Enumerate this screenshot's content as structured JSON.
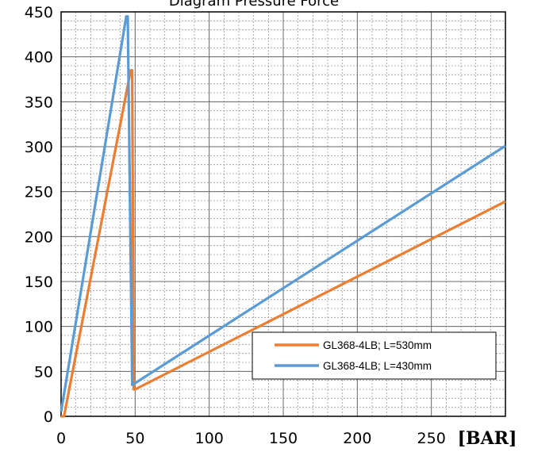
{
  "chart_data": {
    "type": "line",
    "title": "Diagram Pressure Force",
    "xlabel": "[BAR]",
    "ylabel": "",
    "xlim": [
      0,
      300
    ],
    "ylim": [
      0,
      450
    ],
    "x_ticks": [
      0,
      50,
      100,
      150,
      200,
      250
    ],
    "y_ticks": [
      0,
      50,
      100,
      150,
      200,
      250,
      300,
      350,
      400,
      450
    ],
    "grid": true,
    "legend_position": "lower-right",
    "series": [
      {
        "name": "GL368-4LB; L=530mm",
        "color": "#ED7D31",
        "x": [
          0,
          2,
          47,
          48,
          49,
          50,
          300
        ],
        "y": [
          0,
          0,
          385,
          385,
          30,
          30,
          239
        ]
      },
      {
        "name": "GL368-4LB; L=430mm",
        "color": "#5B9BD5",
        "x": [
          0,
          44,
          45,
          48,
          50,
          300
        ],
        "y": [
          5,
          445,
          445,
          35,
          37,
          301
        ]
      }
    ]
  }
}
